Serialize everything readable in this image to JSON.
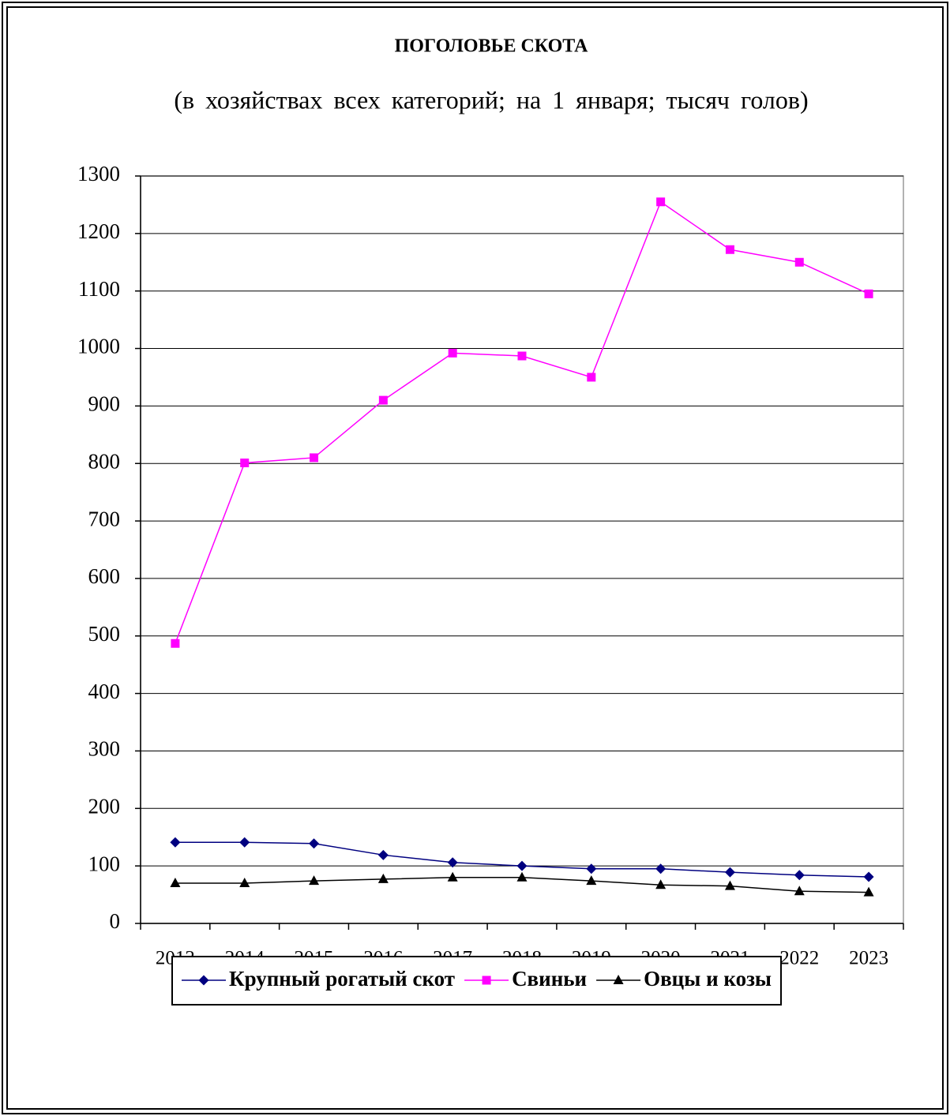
{
  "chart_data": {
    "type": "line",
    "title": "ПОГОЛОВЬЕ СКОТА",
    "subtitle": "(в хозяйствах всех категорий; на 1 января; тысяч голов)",
    "categories": [
      "2013",
      "2014",
      "2015",
      "2016",
      "2017",
      "2018",
      "2019",
      "2020",
      "2021",
      "2022",
      "2023"
    ],
    "series": [
      {
        "name": "Крупный рогатый скот",
        "color": "#000080",
        "marker": "diamond",
        "values": [
          141,
          141,
          139,
          119,
          106,
          100,
          95,
          95,
          89,
          84,
          81
        ]
      },
      {
        "name": "Свиньи",
        "color": "#ff00ff",
        "marker": "square",
        "values": [
          487,
          801,
          810,
          910,
          992,
          987,
          950,
          1255,
          1172,
          1150,
          1095
        ]
      },
      {
        "name": "Овцы и козы",
        "color": "#000000",
        "marker": "triangle",
        "values": [
          70,
          70,
          74,
          77,
          80,
          80,
          74,
          67,
          65,
          56,
          54
        ]
      }
    ],
    "ylim": [
      0,
      1300
    ],
    "yticks": [
      0,
      100,
      200,
      300,
      400,
      500,
      600,
      700,
      800,
      900,
      1000,
      1100,
      1200,
      1300
    ],
    "grid": true,
    "legend": "bottom"
  }
}
